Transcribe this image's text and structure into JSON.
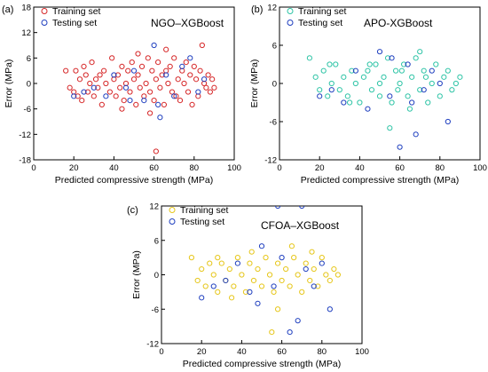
{
  "figure": {
    "panels": [
      {
        "label": "(a)",
        "title": "NGO–XGBoost"
      },
      {
        "label": "(b)",
        "title": "APO-XGBoost"
      },
      {
        "label": "(c)",
        "title": "CFOA–XGBoost"
      }
    ]
  },
  "chart_data": [
    {
      "type": "scatter",
      "title": "NGO–XGBoost",
      "xlabel": "Predicted compressive strength (MPa)",
      "ylabel": "Error (MPa)",
      "xlim": [
        0,
        100
      ],
      "ylim": [
        -18,
        18
      ],
      "xticks": [
        0,
        20,
        40,
        60,
        80,
        100
      ],
      "yticks": [
        -18,
        -12,
        -6,
        0,
        6,
        12,
        18
      ],
      "legend_position": "top-left",
      "series": [
        {
          "name": "Training set",
          "color": "#d62728",
          "points": [
            [
              16,
              3
            ],
            [
              18,
              -1
            ],
            [
              20,
              -2
            ],
            [
              21,
              3
            ],
            [
              22,
              -3
            ],
            [
              23,
              1
            ],
            [
              24,
              -4
            ],
            [
              25,
              4
            ],
            [
              26,
              2
            ],
            [
              27,
              -2
            ],
            [
              28,
              0
            ],
            [
              29,
              5
            ],
            [
              30,
              -3
            ],
            [
              31,
              1
            ],
            [
              32,
              -1
            ],
            [
              33,
              2
            ],
            [
              34,
              -5
            ],
            [
              35,
              3
            ],
            [
              36,
              0
            ],
            [
              38,
              -2
            ],
            [
              39,
              6
            ],
            [
              40,
              1
            ],
            [
              41,
              -3
            ],
            [
              42,
              2
            ],
            [
              43,
              -1
            ],
            [
              44,
              4
            ],
            [
              45,
              -4
            ],
            [
              46,
              0
            ],
            [
              47,
              3
            ],
            [
              48,
              -2
            ],
            [
              49,
              5
            ],
            [
              50,
              1
            ],
            [
              51,
              -5
            ],
            [
              52,
              2
            ],
            [
              53,
              -1
            ],
            [
              54,
              4
            ],
            [
              55,
              -3
            ],
            [
              56,
              0
            ],
            [
              57,
              6
            ],
            [
              58,
              -2
            ],
            [
              59,
              3
            ],
            [
              60,
              -4
            ],
            [
              61,
              1
            ],
            [
              62,
              5
            ],
            [
              63,
              -1
            ],
            [
              64,
              2
            ],
            [
              65,
              -5
            ],
            [
              66,
              3
            ],
            [
              67,
              0
            ],
            [
              68,
              4
            ],
            [
              69,
              -2
            ],
            [
              70,
              6
            ],
            [
              71,
              -3
            ],
            [
              72,
              1
            ],
            [
              73,
              -4
            ],
            [
              74,
              3
            ],
            [
              75,
              0
            ],
            [
              76,
              5
            ],
            [
              77,
              -2
            ],
            [
              78,
              2
            ],
            [
              79,
              -5
            ],
            [
              80,
              4
            ],
            [
              81,
              1
            ],
            [
              82,
              -3
            ],
            [
              83,
              3
            ],
            [
              84,
              9
            ],
            [
              85,
              0
            ],
            [
              86,
              -1
            ],
            [
              87,
              2
            ],
            [
              88,
              -2
            ],
            [
              89,
              1
            ],
            [
              90,
              -1
            ],
            [
              61,
              -16
            ],
            [
              52,
              7
            ],
            [
              66,
              8
            ],
            [
              44,
              -6
            ],
            [
              58,
              -7
            ]
          ]
        },
        {
          "name": "Testing set",
          "color": "#1f3fbf",
          "points": [
            [
              20,
              -3
            ],
            [
              25,
              -2
            ],
            [
              30,
              -1
            ],
            [
              36,
              -3
            ],
            [
              40,
              2
            ],
            [
              46,
              -1
            ],
            [
              50,
              3
            ],
            [
              55,
              -4
            ],
            [
              60,
              9
            ],
            [
              63,
              -8
            ],
            [
              66,
              2
            ],
            [
              70,
              -3
            ],
            [
              74,
              4
            ],
            [
              78,
              6
            ],
            [
              82,
              -2
            ],
            [
              85,
              1
            ],
            [
              62,
              -5
            ],
            [
              48,
              -4
            ]
          ]
        }
      ]
    },
    {
      "type": "scatter",
      "title": "APO-XGBoost",
      "xlabel": "Predicted compressive strength (MPa)",
      "ylabel": "Error (MPa)",
      "xlim": [
        0,
        100
      ],
      "ylim": [
        -12,
        12
      ],
      "xticks": [
        0,
        20,
        40,
        60,
        80,
        100
      ],
      "yticks": [
        -12,
        -6,
        0,
        6,
        12
      ],
      "legend_position": "top-left",
      "series": [
        {
          "name": "Training set",
          "color": "#2ec4a6",
          "points": [
            [
              15,
              4
            ],
            [
              18,
              1
            ],
            [
              20,
              -1
            ],
            [
              22,
              2
            ],
            [
              24,
              -2
            ],
            [
              26,
              0
            ],
            [
              28,
              3
            ],
            [
              30,
              -1
            ],
            [
              32,
              1
            ],
            [
              34,
              -2
            ],
            [
              36,
              2
            ],
            [
              38,
              0
            ],
            [
              40,
              -3
            ],
            [
              42,
              1
            ],
            [
              44,
              2
            ],
            [
              46,
              -1
            ],
            [
              48,
              3
            ],
            [
              50,
              -2
            ],
            [
              52,
              1
            ],
            [
              54,
              4
            ],
            [
              56,
              -3
            ],
            [
              58,
              2
            ],
            [
              60,
              0
            ],
            [
              62,
              3
            ],
            [
              64,
              -2
            ],
            [
              66,
              1
            ],
            [
              68,
              4
            ],
            [
              70,
              -1
            ],
            [
              72,
              2
            ],
            [
              74,
              -3
            ],
            [
              76,
              0
            ],
            [
              78,
              3
            ],
            [
              80,
              -2
            ],
            [
              82,
              1
            ],
            [
              84,
              2
            ],
            [
              86,
              -1
            ],
            [
              88,
              0
            ],
            [
              90,
              1
            ],
            [
              55,
              -7
            ],
            [
              45,
              3
            ],
            [
              65,
              -4
            ],
            [
              70,
              5
            ],
            [
              35,
              -3
            ],
            [
              25,
              3
            ],
            [
              59,
              -1
            ],
            [
              61,
              2
            ],
            [
              73,
              1
            ],
            [
              50,
              0
            ]
          ]
        },
        {
          "name": "Testing set",
          "color": "#1f3fbf",
          "points": [
            [
              20,
              -2
            ],
            [
              26,
              -1
            ],
            [
              32,
              -3
            ],
            [
              38,
              2
            ],
            [
              44,
              -4
            ],
            [
              50,
              5
            ],
            [
              55,
              -2
            ],
            [
              60,
              -10
            ],
            [
              64,
              3
            ],
            [
              68,
              -8
            ],
            [
              72,
              -1
            ],
            [
              76,
              2
            ],
            [
              80,
              0
            ],
            [
              84,
              -6
            ],
            [
              56,
              4
            ],
            [
              66,
              -3
            ]
          ]
        }
      ]
    },
    {
      "type": "scatter",
      "title": "CFOA–XGBoost",
      "xlabel": "Predicted compressive strength (MPa)",
      "ylabel": "Error (MPa)",
      "xlim": [
        0,
        100
      ],
      "ylim": [
        -12,
        12
      ],
      "xticks": [
        0,
        20,
        40,
        60,
        80,
        100
      ],
      "yticks": [
        -12,
        -6,
        0,
        6,
        12
      ],
      "legend_position": "top-left",
      "series": [
        {
          "name": "Training set",
          "color": "#e6c619",
          "points": [
            [
              15,
              3
            ],
            [
              18,
              -1
            ],
            [
              20,
              1
            ],
            [
              22,
              -2
            ],
            [
              24,
              2
            ],
            [
              26,
              0
            ],
            [
              28,
              -3
            ],
            [
              30,
              2
            ],
            [
              32,
              -1
            ],
            [
              34,
              1
            ],
            [
              36,
              -2
            ],
            [
              38,
              3
            ],
            [
              40,
              0
            ],
            [
              42,
              -3
            ],
            [
              44,
              2
            ],
            [
              46,
              -1
            ],
            [
              48,
              1
            ],
            [
              50,
              -2
            ],
            [
              52,
              3
            ],
            [
              54,
              0
            ],
            [
              56,
              -3
            ],
            [
              58,
              2
            ],
            [
              60,
              -1
            ],
            [
              62,
              1
            ],
            [
              64,
              -2
            ],
            [
              66,
              3
            ],
            [
              68,
              0
            ],
            [
              70,
              -3
            ],
            [
              72,
              2
            ],
            [
              74,
              -1
            ],
            [
              76,
              1
            ],
            [
              78,
              -2
            ],
            [
              80,
              3
            ],
            [
              82,
              0
            ],
            [
              84,
              -1
            ],
            [
              86,
              1
            ],
            [
              88,
              0
            ],
            [
              55,
              -10
            ],
            [
              65,
              5
            ],
            [
              45,
              4
            ],
            [
              35,
              -4
            ],
            [
              75,
              4
            ],
            [
              58,
              -6
            ],
            [
              28,
              3
            ]
          ]
        },
        {
          "name": "Testing set",
          "color": "#1f3fbf",
          "points": [
            [
              20,
              -4
            ],
            [
              26,
              -2
            ],
            [
              32,
              -1
            ],
            [
              38,
              2
            ],
            [
              44,
              -3
            ],
            [
              50,
              5
            ],
            [
              56,
              -2
            ],
            [
              60,
              3
            ],
            [
              64,
              -10
            ],
            [
              68,
              -8
            ],
            [
              72,
              1
            ],
            [
              76,
              -2
            ],
            [
              80,
              2
            ],
            [
              84,
              -6
            ],
            [
              58,
              12
            ],
            [
              70,
              12
            ],
            [
              48,
              -5
            ]
          ]
        }
      ]
    }
  ]
}
